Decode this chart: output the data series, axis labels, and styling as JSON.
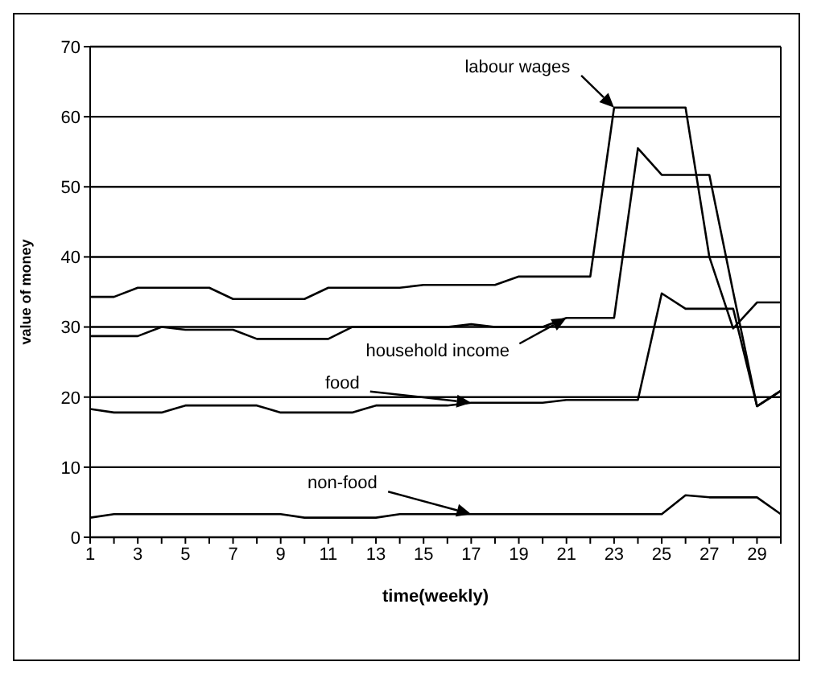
{
  "chart_data": {
    "type": "line",
    "xlabel": "time(weekly)",
    "ylabel": "value of money",
    "x": [
      1,
      2,
      3,
      4,
      5,
      6,
      7,
      8,
      9,
      10,
      11,
      12,
      13,
      14,
      15,
      16,
      17,
      18,
      19,
      20,
      21,
      22,
      23,
      24,
      25,
      26,
      27,
      28,
      29,
      30
    ],
    "series": [
      {
        "name": "labour wages",
        "color": "#000000",
        "values": [
          34.3,
          34.3,
          35.6,
          35.6,
          35.6,
          35.6,
          34,
          34,
          34,
          34,
          35.6,
          35.6,
          35.6,
          35.6,
          36,
          36,
          36,
          36,
          37.2,
          37.2,
          37.2,
          37.2,
          61.3,
          61.3,
          61.3,
          61.3,
          40,
          29.8,
          33.5,
          33.5
        ]
      },
      {
        "name": "household income",
        "color": "#000000",
        "values": [
          28.7,
          28.7,
          28.7,
          30,
          29.6,
          29.6,
          29.6,
          28.3,
          28.3,
          28.3,
          28.3,
          30,
          30,
          30,
          30,
          30,
          30.4,
          30,
          30,
          30,
          31.3,
          31.3,
          31.3,
          55.5,
          51.7,
          51.7,
          51.7,
          35,
          18.7,
          20.9
        ]
      },
      {
        "name": "food",
        "color": "#000000",
        "values": [
          18.3,
          17.8,
          17.8,
          17.8,
          18.8,
          18.8,
          18.8,
          18.8,
          17.8,
          17.8,
          17.8,
          17.8,
          18.8,
          18.8,
          18.8,
          18.8,
          19.2,
          19.2,
          19.2,
          19.2,
          19.6,
          19.6,
          19.6,
          19.6,
          34.8,
          32.6,
          32.6,
          32.6,
          18.7,
          20.9
        ]
      },
      {
        "name": "non-food",
        "color": "#000000",
        "values": [
          2.8,
          3.3,
          3.3,
          3.3,
          3.3,
          3.3,
          3.3,
          3.3,
          3.3,
          2.8,
          2.8,
          2.8,
          2.8,
          3.3,
          3.3,
          3.3,
          3.3,
          3.3,
          3.3,
          3.3,
          3.3,
          3.3,
          3.3,
          3.3,
          3.3,
          6,
          5.7,
          5.7,
          5.7,
          3.3
        ]
      }
    ],
    "xlim": [
      1,
      30
    ],
    "xticks": [
      1,
      {
        "value": 2,
        "label": null
      },
      3,
      {
        "value": 4,
        "label": null
      },
      5,
      {
        "value": 6,
        "label": null
      },
      7,
      {
        "value": 8,
        "label": null
      },
      9,
      {
        "value": 10,
        "label": null
      },
      11,
      {
        "value": 12,
        "label": null
      },
      13,
      {
        "value": 14,
        "label": null
      },
      15,
      {
        "value": 16,
        "label": null
      },
      17,
      {
        "value": 18,
        "label": null
      },
      19,
      {
        "value": 20,
        "label": null
      },
      21,
      {
        "value": 22,
        "label": null
      },
      23,
      {
        "value": 24,
        "label": null
      },
      25,
      {
        "value": 26,
        "label": null
      },
      27,
      {
        "value": 28,
        "label": null
      },
      29,
      {
        "value": 30,
        "label": null
      }
    ],
    "ylim": [
      0,
      70
    ],
    "yticks": [
      0,
      10,
      20,
      30,
      40,
      50,
      60,
      70
    ],
    "grid": "y",
    "legend": false,
    "marker": "none",
    "line_style": "solid"
  }
}
